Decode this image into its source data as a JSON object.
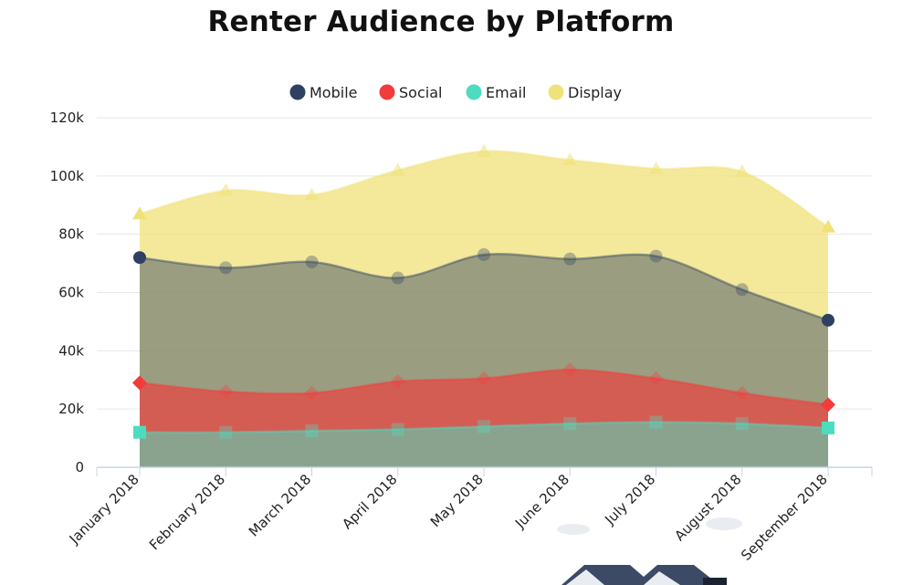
{
  "chart_data": {
    "type": "area",
    "title": "Renter Audience by Platform",
    "xlabel": "",
    "ylabel": "",
    "ylim": [
      0,
      120000
    ],
    "y_ticks": [
      "0",
      "20k",
      "40k",
      "60k",
      "80k",
      "100k",
      "120k"
    ],
    "y_tick_values": [
      0,
      20000,
      40000,
      60000,
      80000,
      100000,
      120000
    ],
    "categories": [
      "January 2018",
      "February 2018",
      "March 2018",
      "April 2018",
      "May 2018",
      "June 2018",
      "July 2018",
      "August 2018",
      "September 2018"
    ],
    "grid": true,
    "legend_position": "top",
    "series": [
      {
        "name": "Mobile",
        "color": "#2e4160",
        "marker": "circle",
        "values": [
          72000,
          68500,
          70500,
          65000,
          73000,
          71500,
          72500,
          61000,
          50500
        ]
      },
      {
        "name": "Social",
        "color": "#f33b3b",
        "marker": "diamond",
        "values": [
          29000,
          26000,
          25500,
          29500,
          30500,
          33500,
          30500,
          25500,
          21500
        ]
      },
      {
        "name": "Email",
        "color": "#4cdcbf",
        "marker": "square",
        "values": [
          12000,
          12000,
          12500,
          13000,
          14000,
          15000,
          15500,
          15000,
          13500
        ]
      },
      {
        "name": "Display",
        "color": "#f0e27a",
        "marker": "triangle",
        "values": [
          87000,
          95000,
          93500,
          102000,
          108500,
          105500,
          102500,
          101500,
          82500
        ]
      }
    ]
  }
}
